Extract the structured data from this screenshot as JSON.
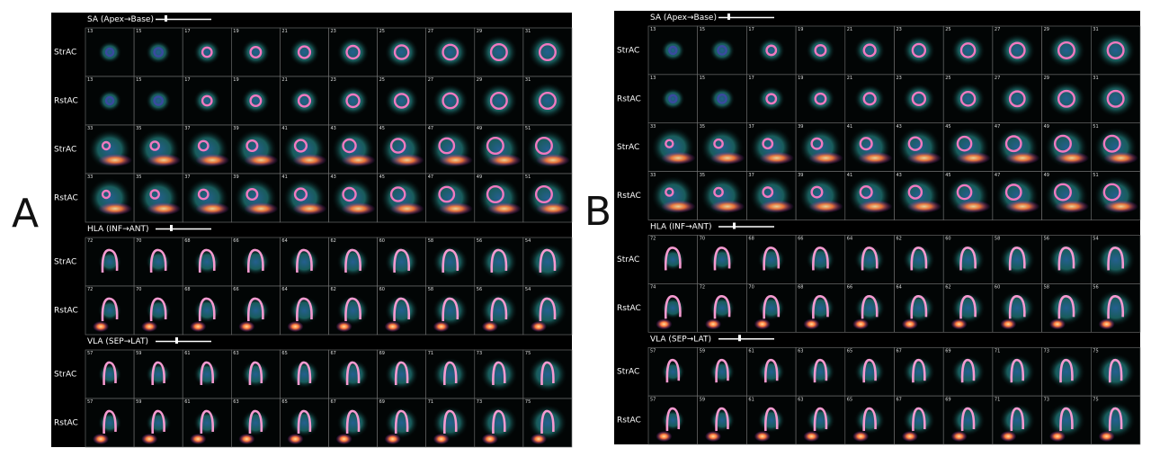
{
  "panels": [
    {
      "label": "A",
      "sections": [
        {
          "title": "SA (Apex→Base)",
          "rows": [
            {
              "label": "StrAC",
              "slices": [
                "13",
                "15",
                "17",
                "19",
                "21",
                "23",
                "25",
                "27",
                "29",
                "31"
              ]
            },
            {
              "label": "RstAC",
              "slices": [
                "13",
                "15",
                "17",
                "19",
                "21",
                "23",
                "25",
                "27",
                "29",
                "31"
              ]
            },
            {
              "label": "StrAC",
              "slices": [
                "33",
                "35",
                "37",
                "39",
                "41",
                "43",
                "45",
                "47",
                "49",
                "51"
              ]
            },
            {
              "label": "RstAC",
              "slices": [
                "33",
                "35",
                "37",
                "39",
                "41",
                "43",
                "45",
                "47",
                "49",
                "51"
              ]
            }
          ]
        },
        {
          "title": "HLA (INF→ANT)",
          "rows": [
            {
              "label": "StrAC",
              "slices": [
                "72",
                "70",
                "68",
                "66",
                "64",
                "62",
                "60",
                "58",
                "56",
                "54"
              ]
            },
            {
              "label": "RstAC",
              "slices": [
                "72",
                "70",
                "68",
                "66",
                "64",
                "62",
                "60",
                "58",
                "56",
                "54"
              ]
            }
          ]
        },
        {
          "title": "VLA (SEP→LAT)",
          "rows": [
            {
              "label": "StrAC",
              "slices": [
                "57",
                "59",
                "61",
                "63",
                "65",
                "67",
                "69",
                "71",
                "73",
                "75"
              ]
            },
            {
              "label": "RstAC",
              "slices": [
                "57",
                "59",
                "61",
                "63",
                "65",
                "67",
                "69",
                "71",
                "73",
                "75"
              ]
            }
          ]
        }
      ]
    },
    {
      "label": "B",
      "sections": [
        {
          "title": "SA (Apex→Base)",
          "rows": [
            {
              "label": "StrAC",
              "slices": [
                "13",
                "15",
                "17",
                "19",
                "21",
                "23",
                "25",
                "27",
                "29",
                "31"
              ]
            },
            {
              "label": "RstAC",
              "slices": [
                "13",
                "15",
                "17",
                "19",
                "21",
                "23",
                "25",
                "27",
                "29",
                "31"
              ]
            },
            {
              "label": "StrAC",
              "slices": [
                "33",
                "35",
                "37",
                "39",
                "41",
                "43",
                "45",
                "47",
                "49",
                "51"
              ]
            },
            {
              "label": "RstAC",
              "slices": [
                "33",
                "35",
                "37",
                "39",
                "41",
                "43",
                "45",
                "47",
                "49",
                "51"
              ]
            }
          ]
        },
        {
          "title": "HLA (INF→ANT)",
          "rows": [
            {
              "label": "StrAC",
              "slices": [
                "72",
                "70",
                "68",
                "66",
                "64",
                "62",
                "60",
                "58",
                "56",
                "54"
              ]
            },
            {
              "label": "RstAC",
              "slices": [
                "74",
                "72",
                "70",
                "68",
                "66",
                "64",
                "62",
                "60",
                "58",
                "56"
              ]
            }
          ]
        },
        {
          "title": "VLA (SEP→LAT)",
          "rows": [
            {
              "label": "StrAC",
              "slices": [
                "57",
                "59",
                "61",
                "63",
                "65",
                "67",
                "69",
                "71",
                "73",
                "75"
              ]
            },
            {
              "label": "RstAC",
              "slices": [
                "57",
                "59",
                "61",
                "63",
                "65",
                "67",
                "69",
                "71",
                "73",
                "75"
              ]
            }
          ]
        }
      ]
    }
  ]
}
